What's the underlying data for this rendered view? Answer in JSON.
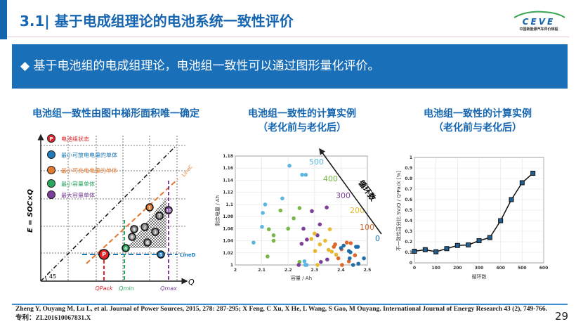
{
  "header": {
    "title": "3.1| 基于电成组理论的电池系统一致性评价",
    "logo_text": "CEVE",
    "logo_subtitle": "中国新能源汽车评价规程"
  },
  "banner": {
    "bullet": "◆",
    "text": "基于电池组的电成组理论，电池组一致性可以通过图形量化评价。"
  },
  "colors": {
    "brand": "#1565b0",
    "banner": "#1a6fb9"
  },
  "left_panel": {
    "heading": "电池组一致性由图中梯形面积唯一确定",
    "y_axis_label": "E = SOC×Q",
    "x_axis_label": "Q",
    "angle_label": "45",
    "line_c": "LineC",
    "line_d": "LineD",
    "q_pack": "QPack",
    "q_min": "Qmin",
    "q_max": "Qmax",
    "legend": [
      {
        "marker": "P",
        "label": "电池组状态",
        "color": "#e0262a"
      },
      {
        "marker": "",
        "label": "最小可放电电量的单体",
        "color": "#1f7bb8"
      },
      {
        "marker": "",
        "label": "最小可充电电量的单体",
        "color": "#e07a30"
      },
      {
        "marker": "",
        "label": "最小容量单体",
        "color": "#2aa760"
      },
      {
        "marker": "",
        "label": "最大容量单体",
        "color": "#7a3e98"
      }
    ],
    "cells": [
      {
        "label": "P",
        "color": "#e0262a"
      },
      {
        "label": "4",
        "color": "#2aa760"
      },
      {
        "label": "5",
        "color": "#1f7bb8"
      },
      {
        "label": "1",
        "color": "#e07a30"
      },
      {
        "label": "10",
        "color": "#7a3e98"
      },
      {
        "label": "7",
        "color": "#888888"
      },
      {
        "label": "2",
        "color": "#888888"
      },
      {
        "label": "9",
        "color": "#888888"
      },
      {
        "label": "3",
        "color": "#888888"
      },
      {
        "label": "8",
        "color": "#888888"
      },
      {
        "label": "6",
        "color": "#888888"
      }
    ]
  },
  "middle_panel": {
    "heading": "电池组一致性的计算实例",
    "subheading": "（老化前与老化后）"
  },
  "right_panel": {
    "heading": "电池组一致性的计算实例",
    "subheading": "（老化前与老化后）"
  },
  "chart_data": [
    {
      "type": "scatter",
      "xlabel": "容量 / Ah",
      "ylabel": "剩余电量 / Ah",
      "xlim": [
        2,
        2.5
      ],
      "ylim": [
        1,
        1.18
      ],
      "xticks": [
        "2",
        "2.1",
        "2.2",
        "2.3",
        "2.4",
        "2.5"
      ],
      "yticks": [
        "1",
        "1.02",
        "1.04",
        "1.06",
        "1.08",
        "1.1",
        "1.12",
        "1.14",
        "1.16",
        "1.18"
      ],
      "grid": true,
      "arrow_label": "循环数",
      "series": [
        {
          "name": "500",
          "color": "#5bb6e0",
          "points": [
            [
              2.205,
              1.164
            ],
            [
              2.253,
              1.149
            ],
            [
              2.267,
              1.149
            ],
            [
              2.178,
              1.11
            ],
            [
              2.113,
              1.1
            ],
            [
              2.104,
              1.086
            ],
            [
              2.101,
              1.063
            ],
            [
              2.069,
              1.037
            ],
            [
              2.262,
              1.006
            ],
            [
              2.265,
              1.0
            ],
            [
              2.27,
              1.0
            ]
          ]
        },
        {
          "name": "400",
          "color": "#7ab648",
          "points": [
            [
              2.171,
              1.09
            ],
            [
              2.243,
              1.094
            ],
            [
              2.221,
              1.077
            ],
            [
              2.127,
              1.059
            ],
            [
              2.2,
              1.06
            ],
            [
              2.145,
              1.049
            ],
            [
              2.145,
              1.04
            ],
            [
              2.122,
              1.014
            ],
            [
              2.243,
              1.005
            ]
          ]
        },
        {
          "name": "300",
          "color": "#7b3f9a",
          "points": [
            [
              2.29,
              1.089
            ],
            [
              2.346,
              1.095
            ],
            [
              2.32,
              1.067
            ],
            [
              2.258,
              1.06
            ],
            [
              2.311,
              1.049
            ],
            [
              2.271,
              1.042
            ],
            [
              2.251,
              1.035
            ],
            [
              2.24,
              1.0
            ],
            [
              2.324,
              1.005
            ],
            [
              2.348,
              1.009
            ]
          ]
        },
        {
          "name": "200",
          "color": "#e8b830",
          "points": [
            [
              2.3,
              1.052
            ],
            [
              2.358,
              1.059
            ],
            [
              2.288,
              1.043
            ],
            [
              2.34,
              1.04
            ],
            [
              2.32,
              1.034
            ],
            [
              2.302,
              1.023
            ],
            [
              2.353,
              1.025
            ],
            [
              2.365,
              1.022
            ],
            [
              2.382,
              1.017
            ],
            [
              2.311,
              1.0
            ]
          ]
        },
        {
          "name": "100",
          "color": "#d9682a",
          "points": [
            [
              2.373,
              1.03
            ],
            [
              2.378,
              1.034
            ],
            [
              2.422,
              1.037
            ],
            [
              2.437,
              1.036
            ],
            [
              2.402,
              1.026
            ],
            [
              2.39,
              1.011
            ],
            [
              2.43,
              1.006
            ],
            [
              2.453,
              1.016
            ],
            [
              2.404,
              1.0
            ]
          ]
        },
        {
          "name": "0",
          "color": "#1f6ea8",
          "points": [
            [
              2.41,
              1.032
            ],
            [
              2.4,
              1.028
            ],
            [
              2.457,
              1.03
            ],
            [
              2.464,
              1.03
            ],
            [
              2.43,
              1.023
            ],
            [
              2.436,
              1.021
            ],
            [
              2.433,
              1.011
            ],
            [
              2.487,
              1.011
            ],
            [
              2.466,
              1.002
            ],
            [
              2.446,
              1.0
            ]
          ]
        }
      ]
    },
    {
      "type": "line",
      "xlabel": "循环数",
      "ylabel": "不一致性百分比 SV/Q / Q²Pack [%]",
      "xlim": [
        0,
        600
      ],
      "ylim": [
        0,
        1
      ],
      "xticks": [
        "0",
        "100",
        "200",
        "300",
        "400",
        "500",
        "600"
      ],
      "yticks": [
        "0",
        "0.1",
        "0.2",
        "0.3",
        "0.4",
        "0.5",
        "0.6",
        "0.7",
        "0.8",
        "0.9",
        "1"
      ],
      "grid": true,
      "x": [
        0,
        50,
        100,
        150,
        200,
        250,
        300,
        350,
        400,
        450,
        500,
        550
      ],
      "y": [
        0.11,
        0.125,
        0.105,
        0.135,
        0.165,
        0.17,
        0.21,
        0.24,
        0.4,
        0.6,
        0.76,
        0.85
      ],
      "marker_color": "#1f5f93"
    }
  ],
  "footer": {
    "reference": "Zheng Y, Ouyang M, Lu L, et al. Journal of Power Sources, 2015, 278: 287-295; X Feng, C Xu, X He, L Wang, S Gao, M Ouyang. International Journal of Energy Research 43 (2), 749-766.",
    "patent": "专利：ZL201610067831.X",
    "page_number": "29"
  }
}
